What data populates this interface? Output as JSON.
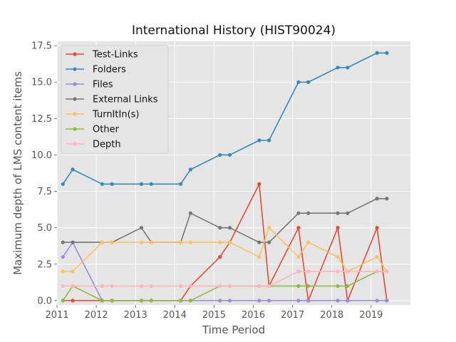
{
  "chart_data": {
    "type": "line",
    "title": "International History (HIST90024)",
    "xlabel": "Time Period",
    "ylabel": "Maximum depth of LMS content items",
    "xlim": [
      2011.0,
      2020.0
    ],
    "ylim": [
      -0.3,
      17.8
    ],
    "x_ticks": [
      "2011",
      "2012",
      "2013",
      "2014",
      "2015",
      "2016",
      "2017",
      "2018",
      "2019"
    ],
    "y_ticks": [
      "0.0",
      "2.5",
      "5.0",
      "7.5",
      "10.0",
      "12.5",
      "15.0",
      "17.5"
    ],
    "grid": true,
    "legend_position": "upper-left",
    "x": [
      2011.15,
      2011.4,
      2012.15,
      2012.4,
      2013.15,
      2013.4,
      2014.15,
      2014.4,
      2015.15,
      2015.4,
      2016.15,
      2016.4,
      2017.15,
      2017.4,
      2018.15,
      2018.4,
      2019.15,
      2019.4
    ],
    "series": [
      {
        "name": "Test-Links",
        "color": "#E24A33",
        "values": [
          0,
          0,
          0,
          0,
          0,
          0,
          0,
          1,
          3,
          4,
          8,
          1,
          5,
          0,
          5,
          0,
          5,
          0
        ]
      },
      {
        "name": "Folders",
        "color": "#348ABD",
        "values": [
          8,
          9,
          8,
          8,
          8,
          8,
          8,
          9,
          10,
          10,
          11,
          11,
          15,
          15,
          16,
          16,
          17,
          17
        ]
      },
      {
        "name": "Files",
        "color": "#988ED5",
        "values": [
          3,
          4,
          0,
          0,
          0,
          0,
          0,
          0,
          0,
          0,
          0,
          0,
          0,
          0,
          0,
          0,
          0,
          0
        ]
      },
      {
        "name": "External Links",
        "color": "#777777",
        "values": [
          4,
          4,
          4,
          4,
          5,
          4,
          4,
          6,
          5,
          5,
          4,
          4,
          6,
          6,
          6,
          6,
          7,
          7
        ]
      },
      {
        "name": "TurnItIn(s)",
        "color": "#FBC15E",
        "values": [
          2,
          2,
          4,
          4,
          4,
          4,
          4,
          4,
          4,
          4,
          3,
          5,
          3,
          4,
          3,
          2,
          3,
          2
        ]
      },
      {
        "name": "Other",
        "color": "#8EBA42",
        "values": [
          0,
          1,
          0,
          0,
          0,
          0,
          0,
          0,
          1,
          1,
          1,
          1,
          1,
          1,
          1,
          1,
          2,
          2
        ]
      },
      {
        "name": "Depth",
        "color": "#FFB5B8",
        "values": [
          1,
          1,
          1,
          1,
          1,
          1,
          1,
          1,
          1,
          1,
          1,
          1,
          2,
          2,
          2,
          2,
          2,
          2
        ]
      }
    ]
  }
}
